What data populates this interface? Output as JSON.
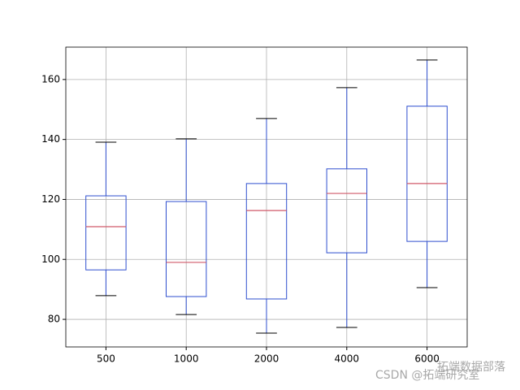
{
  "chart_data": {
    "type": "box",
    "categories": [
      "500",
      "1000",
      "2000",
      "4000",
      "6000"
    ],
    "boxes": [
      {
        "low": 87.9,
        "q1": 96.5,
        "median": 110.9,
        "q3": 121.2,
        "high": 139.1
      },
      {
        "low": 81.6,
        "q1": 87.6,
        "median": 99.0,
        "q3": 119.3,
        "high": 140.2
      },
      {
        "low": 75.4,
        "q1": 86.8,
        "median": 116.3,
        "q3": 125.3,
        "high": 147.0
      },
      {
        "low": 77.3,
        "q1": 102.2,
        "median": 122.0,
        "q3": 130.2,
        "high": 157.3
      },
      {
        "low": 90.6,
        "q1": 106.0,
        "median": 125.3,
        "q3": 151.1,
        "high": 166.5
      }
    ],
    "box_color": "#2f4fcf",
    "median_color": "#d05a6a",
    "cap_color": "#000000",
    "ylim": [
      70.8,
      170.8
    ],
    "yticks": [
      80,
      100,
      120,
      140,
      160
    ],
    "grid": true,
    "watermark": [
      "拓端数据部落",
      "CSDN @拓端研究室"
    ]
  }
}
